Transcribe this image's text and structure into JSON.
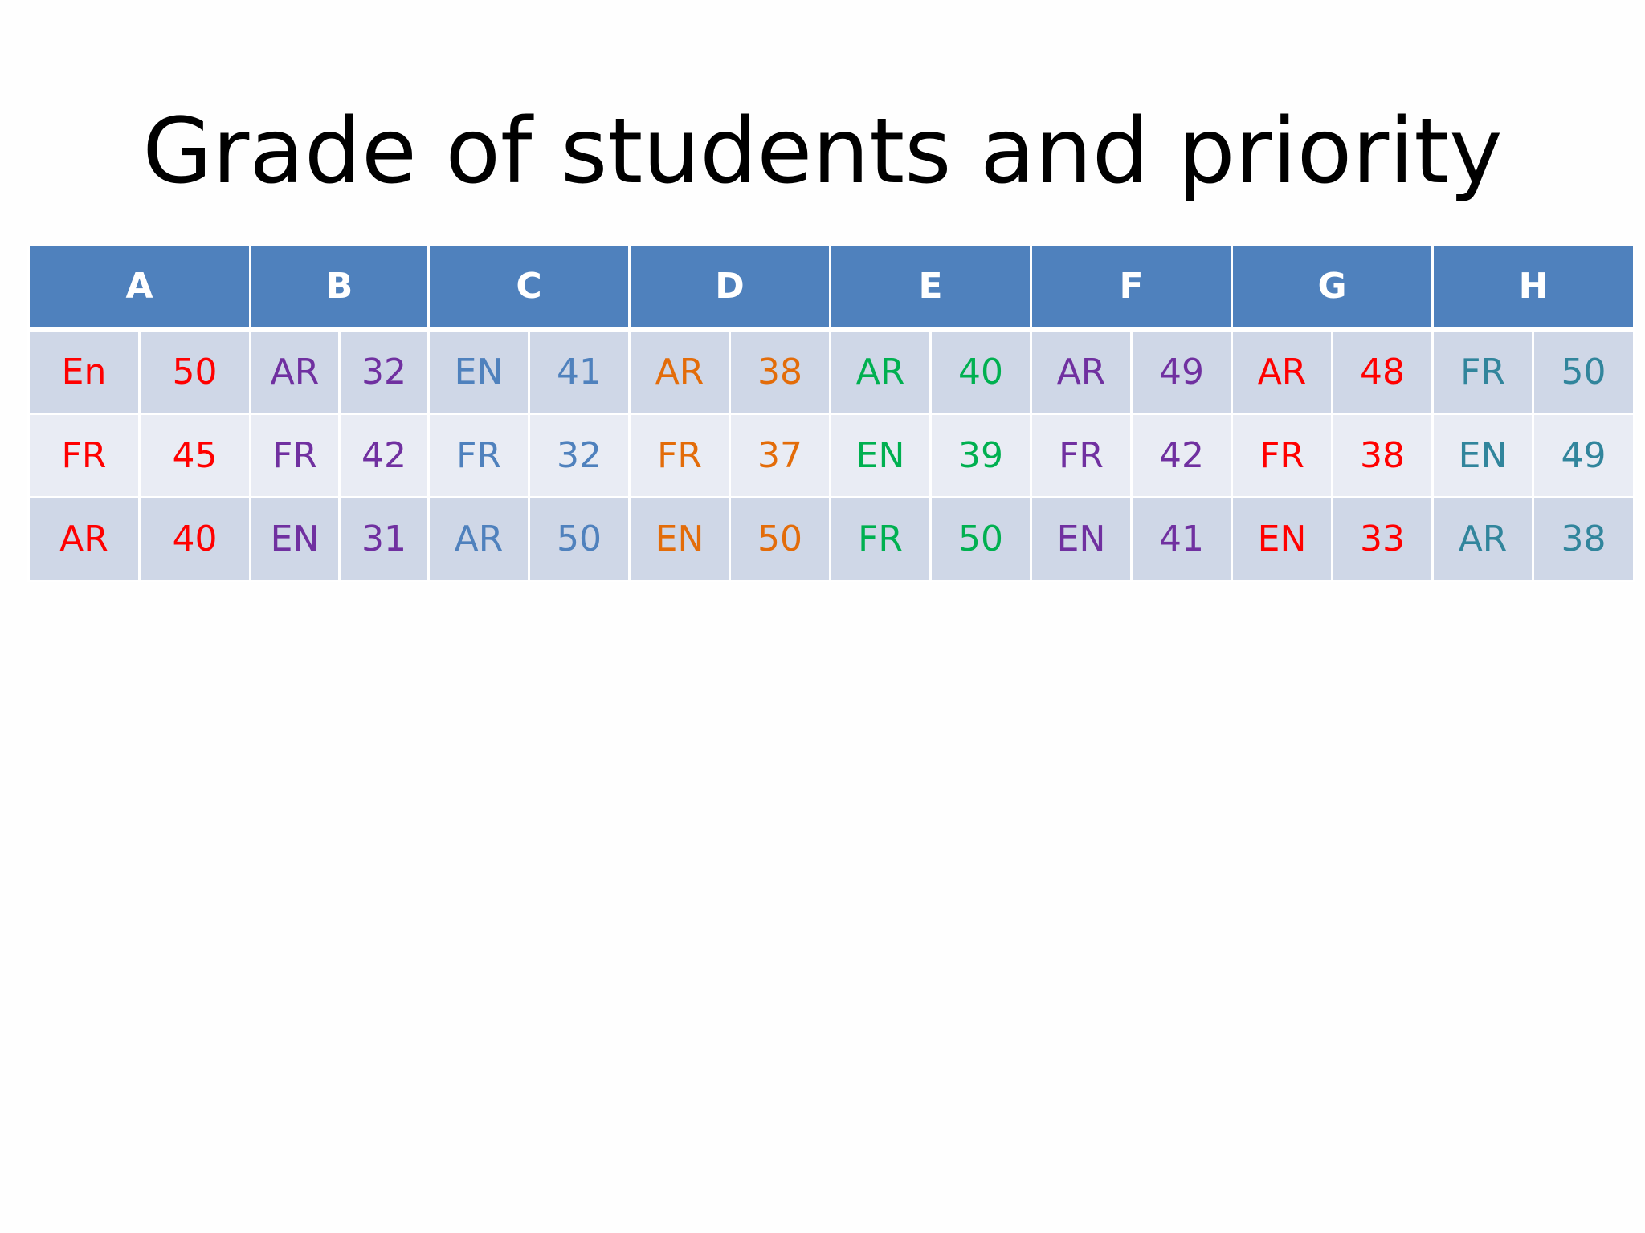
{
  "title": "Grade of students and priority",
  "colors": {
    "header_bg": "#4f81bd",
    "header_text": "#ffffff",
    "row_odd_bg": "#cfd7e7",
    "row_even_bg": "#e9ecf4"
  },
  "groups": [
    {
      "label": "A",
      "color": "#ff0000",
      "rows": [
        [
          "En",
          "50"
        ],
        [
          "FR",
          "45"
        ],
        [
          "AR",
          "40"
        ]
      ]
    },
    {
      "label": "B",
      "color": "#7030a0",
      "rows": [
        [
          "AR",
          "32"
        ],
        [
          "FR",
          "42"
        ],
        [
          "EN",
          "31"
        ]
      ]
    },
    {
      "label": "C",
      "color": "#4f81bd",
      "rows": [
        [
          "EN",
          "41"
        ],
        [
          "FR",
          "32"
        ],
        [
          "AR",
          "50"
        ]
      ]
    },
    {
      "label": "D",
      "color": "#e36c09",
      "rows": [
        [
          "AR",
          "38"
        ],
        [
          "FR",
          "37"
        ],
        [
          "EN",
          "50"
        ]
      ]
    },
    {
      "label": "E",
      "color": "#00b050",
      "rows": [
        [
          "AR",
          "40"
        ],
        [
          "EN",
          "39"
        ],
        [
          "FR",
          "50"
        ]
      ]
    },
    {
      "label": "F",
      "color": "#7030a0",
      "rows": [
        [
          "AR",
          "49"
        ],
        [
          "FR",
          "42"
        ],
        [
          "EN",
          "41"
        ]
      ]
    },
    {
      "label": "G",
      "color": "#ff0000",
      "rows": [
        [
          "AR",
          "48"
        ],
        [
          "FR",
          "38"
        ],
        [
          "EN",
          "33"
        ]
      ]
    },
    {
      "label": "H",
      "color": "#31859c",
      "rows": [
        [
          "FR",
          "50"
        ],
        [
          "EN",
          "49"
        ],
        [
          "AR",
          "38"
        ]
      ]
    }
  ]
}
